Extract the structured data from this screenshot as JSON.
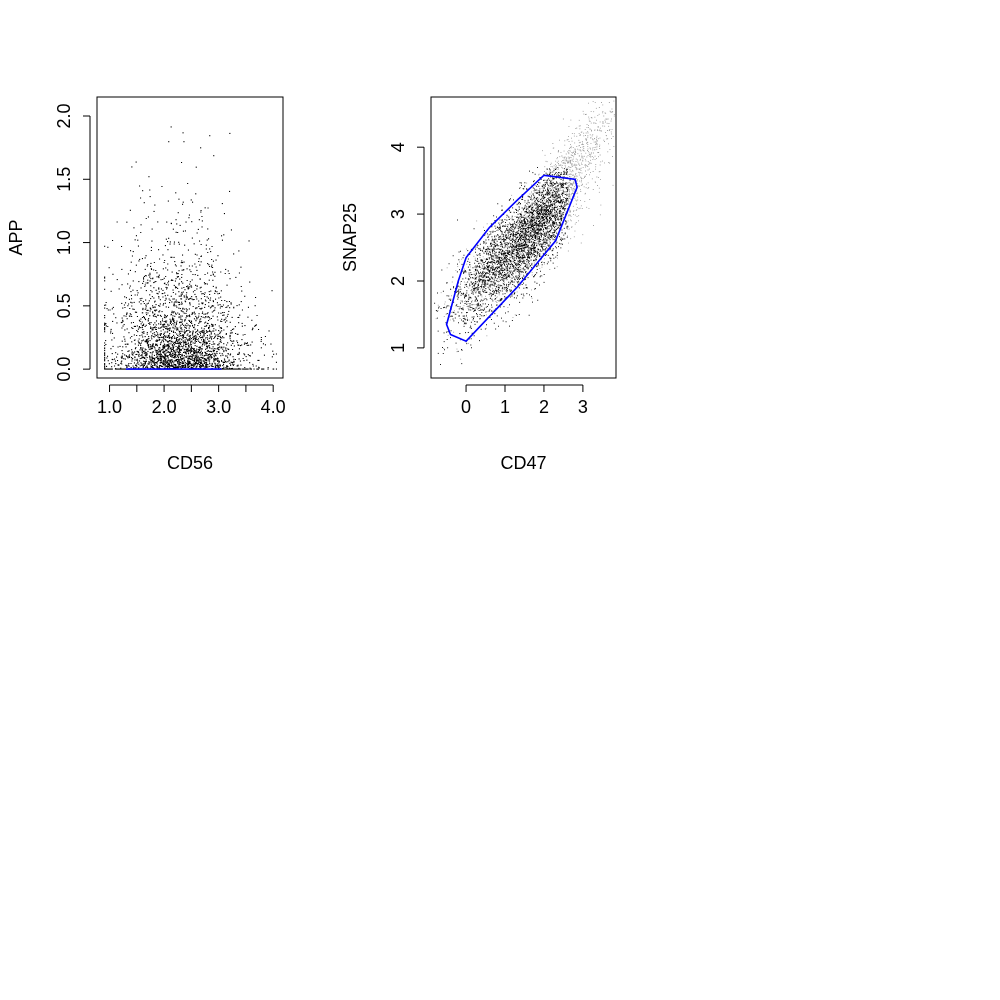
{
  "chart_data": [
    {
      "type": "scatter",
      "title": "",
      "xlabel": "CD56",
      "ylabel": "APP",
      "xlim": [
        0.77,
        4.18
      ],
      "ylim": [
        -0.07,
        2.15
      ],
      "xticks": [
        1.0,
        1.5,
        2.0,
        2.5,
        3.0,
        3.5,
        4.0
      ],
      "xtick_labels": [
        "1.0",
        "",
        "2.0",
        "",
        "3.0",
        "",
        "4.0"
      ],
      "yticks": [
        0.0,
        0.5,
        1.0,
        1.5,
        2.0
      ],
      "ytick_labels": [
        "0.0",
        "0.5",
        "1.0",
        "1.5",
        "2.0"
      ],
      "grid": false,
      "points": {
        "n": 4200,
        "color": "#000000",
        "x_center": 2.25,
        "x_sd": 0.6,
        "y_distribution": "zero-inflated exponential",
        "y_zero_fraction": 0.35,
        "y_mean": 0.3,
        "x_range": [
          0.9,
          4.05
        ],
        "y_range": [
          0,
          2.05
        ]
      },
      "overlay": {
        "color": "#0000ff",
        "type": "line",
        "points": [
          [
            1.3,
            0.0
          ],
          [
            3.05,
            0.0
          ]
        ]
      }
    },
    {
      "type": "scatter",
      "title": "",
      "xlabel": "CD47",
      "ylabel": "SNAP25",
      "xlim": [
        -0.9,
        3.85
      ],
      "ylim": [
        0.55,
        4.75
      ],
      "xticks": [
        0,
        1,
        2,
        3
      ],
      "xtick_labels": [
        "0",
        "1",
        "2",
        "3"
      ],
      "yticks": [
        1,
        2,
        3,
        4
      ],
      "ytick_labels": [
        "1",
        "2",
        "3",
        "4"
      ],
      "grid": false,
      "points": {
        "n": 5000,
        "color": "#000000",
        "cluster_centers": [
          [
            1.8,
            2.75
          ],
          [
            0.6,
            2.2
          ]
        ],
        "correlation": 0.75,
        "x_sd": 0.8,
        "y_sd": 0.65
      },
      "overlay": {
        "color": "#0000ff",
        "type": "polygon",
        "points": [
          [
            2.0,
            3.58
          ],
          [
            2.8,
            3.52
          ],
          [
            2.85,
            3.4
          ],
          [
            2.3,
            2.6
          ],
          [
            1.3,
            1.9
          ],
          [
            0.0,
            1.1
          ],
          [
            -0.4,
            1.2
          ],
          [
            -0.5,
            1.35
          ],
          [
            -0.2,
            2.0
          ],
          [
            0.0,
            2.35
          ],
          [
            0.6,
            2.8
          ],
          [
            1.3,
            3.2
          ],
          [
            2.0,
            3.58
          ]
        ]
      }
    }
  ]
}
